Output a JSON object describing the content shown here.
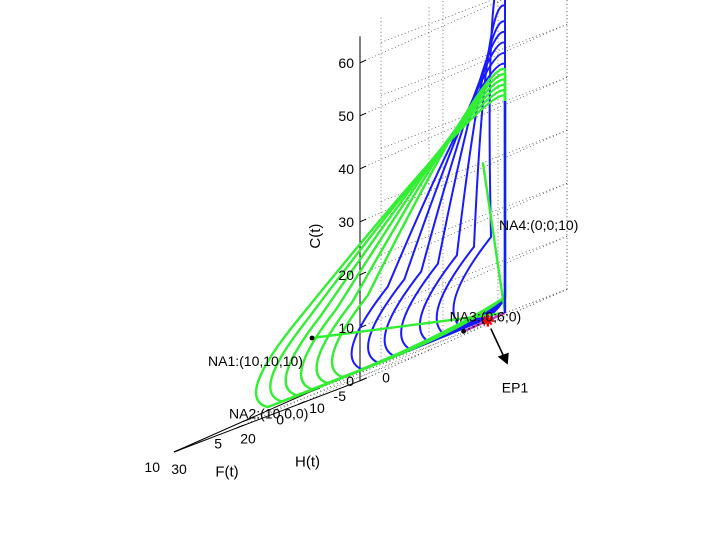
{
  "chart_data": {
    "type": "line",
    "projection": "3d",
    "title": "",
    "axes": {
      "F": {
        "label": "F(t)",
        "range": [
          -5,
          10
        ],
        "ticks": [
          "-5",
          "0",
          "5",
          "10"
        ]
      },
      "H": {
        "label": "H(t)",
        "range": [
          0,
          30
        ],
        "ticks": [
          "0",
          "10",
          "20",
          "30"
        ]
      },
      "C": {
        "label": "C(t)",
        "range": [
          0,
          65
        ],
        "ticks": [
          "0",
          "10",
          "20",
          "30",
          "40",
          "50",
          "60"
        ]
      }
    },
    "grid": true,
    "series": [
      {
        "color": "#1a1aff",
        "style": "trajectory",
        "loops": [
          {
            "c": 64.5,
            "f": 1.0,
            "h": 1.0
          },
          {
            "c": 58.0,
            "f": 1.4,
            "h": 1.8
          },
          {
            "c": 55.0,
            "f": 1.8,
            "h": 2.6
          },
          {
            "c": 53.0,
            "f": 2.3,
            "h": 3.4
          },
          {
            "c": 51.0,
            "f": 2.8,
            "h": 4.0
          },
          {
            "c": 49.0,
            "f": 3.3,
            "h": 4.6
          },
          {
            "c": 47.0,
            "f": 3.8,
            "h": 5.2
          }
        ]
      },
      {
        "color": "#33ee33",
        "style": "trajectory",
        "loops": [
          {
            "c": 46.0,
            "f": 4.4,
            "h": 5.9
          },
          {
            "c": 45.0,
            "f": 4.9,
            "h": 6.4
          },
          {
            "c": 44.0,
            "f": 5.4,
            "h": 6.9
          },
          {
            "c": 43.0,
            "f": 5.9,
            "h": 7.4
          },
          {
            "c": 42.0,
            "f": 6.4,
            "h": 7.9
          },
          {
            "c": 41.0,
            "f": 6.9,
            "h": 8.3
          }
        ]
      }
    ],
    "segments": [
      {
        "color": "#33ee33",
        "from": [
          0,
          0,
          0
        ],
        "to": [
          10,
          10,
          10
        ]
      },
      {
        "color": "#33ee33",
        "from": [
          0,
          0,
          0
        ],
        "to": [
          1.5,
          0.5,
          30
        ]
      },
      {
        "color": "#cc33cc",
        "from": [
          0,
          0,
          0
        ],
        "to": [
          0,
          6,
          0
        ]
      },
      {
        "color": "#000000",
        "dotted": true,
        "from": [
          0,
          6,
          0
        ],
        "to": [
          0,
          2.5,
          0
        ]
      },
      {
        "color": "#1a1aff",
        "from": [
          0,
          0,
          0
        ],
        "to": [
          0,
          0,
          40
        ]
      }
    ],
    "equilibria": [
      {
        "label": "NA1:(10,10,10)",
        "point": [
          10,
          10,
          10
        ],
        "marker": "dot",
        "color": "#000000"
      },
      {
        "label": "NA2:(10,0,0)",
        "point": [
          10,
          0,
          0
        ],
        "marker": "none",
        "color": "#000000"
      },
      {
        "label": "NA3:(0;6;0)",
        "point": [
          0,
          6,
          0
        ],
        "marker": "dot",
        "color": "#000000"
      },
      {
        "label": "NA4:(0;0;10)",
        "point": [
          0,
          0,
          10
        ],
        "marker": "none",
        "color": "#000000"
      },
      {
        "label": "EP1",
        "point": [
          0,
          2.5,
          0
        ],
        "marker": "star",
        "color": "#ff0000"
      }
    ]
  }
}
